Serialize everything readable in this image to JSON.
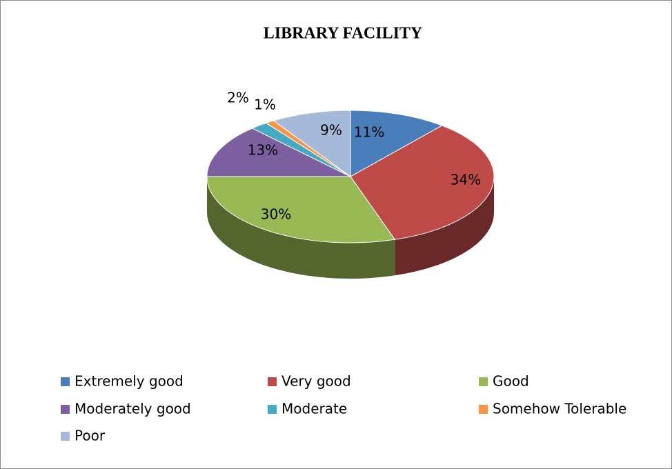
{
  "chart_data": {
    "type": "pie3d",
    "title": "LIBRARY FACILITY",
    "categories": [
      "Extremely good",
      "Very good",
      "Good",
      "Moderately good",
      "Moderate",
      "Somehow Tolerable",
      "Poor"
    ],
    "values": [
      11,
      34,
      30,
      13,
      2,
      1,
      9
    ],
    "value_labels": [
      "11%",
      "34%",
      "30%",
      "13%",
      "2%",
      "1%",
      "9%"
    ],
    "colors": [
      "#4a7ebb",
      "#be4b48",
      "#98b954",
      "#7d60a0",
      "#46aac5",
      "#f79646",
      "#a5b9d9"
    ],
    "legend": "bottom"
  }
}
